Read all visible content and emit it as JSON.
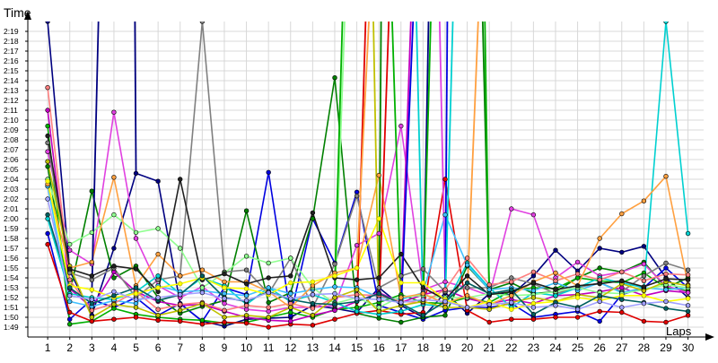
{
  "chart_data": {
    "type": "line",
    "ylabel": "Time",
    "xlabel": "Laps",
    "grid": true,
    "x": [
      1,
      2,
      3,
      4,
      5,
      6,
      7,
      8,
      9,
      10,
      11,
      12,
      13,
      14,
      15,
      16,
      17,
      18,
      19,
      20,
      21,
      22,
      23,
      24,
      25,
      26,
      27,
      28,
      29,
      30
    ],
    "ylim": [
      108,
      140
    ],
    "xlim": [
      0.1,
      30.2
    ],
    "y_tick_values": [
      109,
      110,
      111,
      112,
      113,
      114,
      115,
      116,
      117,
      118,
      119,
      120,
      121,
      122,
      123,
      124,
      125,
      126,
      127,
      128,
      129,
      130,
      131,
      132,
      133,
      134,
      135,
      136,
      137,
      138,
      139
    ],
    "y_tick_labels": [
      "1:49",
      "1:50",
      "1:51",
      "1:52",
      "1:53",
      "1:54",
      "1:55",
      "1:56",
      "1:57",
      "1:58",
      "1:59",
      "2:00",
      "2:01",
      "2:02",
      "2:03",
      "2:04",
      "2:05",
      "2:06",
      "2:07",
      "2:08",
      "2:09",
      "2:10",
      "2:11",
      "2:12",
      "2:13",
      "2:14",
      "2:15",
      "2:16",
      "2:17",
      "2:18",
      "2:19"
    ],
    "x_tick_labels": [
      "1",
      "2",
      "3",
      "4",
      "5",
      "6",
      "7",
      "8",
      "9",
      "10",
      "11",
      "12",
      "13",
      "14",
      "15",
      "16",
      "17",
      "18",
      "19",
      "20",
      "21",
      "22",
      "23",
      "24",
      "25",
      "26",
      "27",
      "28",
      "29",
      "30"
    ],
    "series": [
      {
        "color": "#000080",
        "values": [
          140.0,
          114.7,
          110.2,
          117.0,
          124.6,
          123.8,
          111.4,
          109.6,
          109.1,
          109.8,
          109.9,
          110.0,
          111.2,
          110.9,
          110.5,
          113.0,
          111.2,
          110.0,
          112.5,
          110.4,
          112.4,
          112.3,
          114.2,
          116.8,
          114.7,
          117.0,
          116.6,
          117.2,
          114.0,
          112.0
        ]
      },
      {
        "color": "#0000e0",
        "values": [
          118.5,
          109.8,
          111.8,
          111.0,
          112.0,
          110.2,
          111.4,
          109.6,
          113.0,
          112.3,
          124.7,
          110.2,
          120.0,
          115.5,
          122.7,
          111.2,
          110.5,
          109.8,
          110.7,
          111.0,
          111.0,
          111.4,
          110.0,
          110.3,
          110.6,
          109.6,
          112.3,
          113.0,
          115.0,
          113.0
        ]
      },
      {
        "color": "#008000",
        "values": [
          125.3,
          112.4,
          122.8,
          114.0,
          115.2,
          112.0,
          110.4,
          111.1,
          111.7,
          120.8,
          111.5,
          112.5,
          120.0,
          134.3,
          110.4,
          109.9,
          109.5,
          110.0,
          110.2,
          115.2,
          112.8,
          113.5,
          112.4,
          112.6,
          114.0,
          115.0,
          114.6,
          115.6,
          113.0,
          114.0
        ]
      },
      {
        "color": "#00b000",
        "values": [
          129.4,
          109.3,
          109.6,
          110.9,
          110.3,
          110.0,
          109.8,
          109.7,
          109.4,
          109.5,
          110.0,
          110.5,
          110.0,
          110.8,
          111.0,
          111.5,
          112.3,
          111.5,
          111.4,
          112.0,
          111.5,
          112.7,
          113.0,
          112.9,
          114.0,
          113.7,
          113.5,
          114.5,
          113.0,
          112.7
        ]
      },
      {
        "color": "#e00000",
        "values": [
          117.4,
          110.5,
          109.6,
          109.8,
          110.0,
          109.7,
          109.6,
          109.3,
          109.5,
          109.4,
          109.0,
          109.3,
          109.2,
          109.8,
          110.4,
          110.7,
          110.3,
          110.5,
          124.0,
          110.7,
          109.5,
          109.8,
          109.8,
          110.0,
          110.0,
          110.6,
          110.5,
          109.6,
          109.5,
          110.2
        ]
      },
      {
        "color": "#c000c0",
        "values": [
          131.0,
          112.9,
          111.0,
          114.6,
          112.6,
          111.6,
          111.2,
          111.3,
          110.6,
          110.0,
          109.7,
          109.6,
          110.2,
          110.7,
          111.6,
          112.5,
          111.5,
          112.3,
          112.8,
          111.9,
          111.4,
          111.8,
          111.4,
          112.2,
          112.3,
          112.6,
          113.0,
          112.2,
          112.7,
          112.5
        ]
      },
      {
        "color": "#e040e0",
        "values": [
          126.8,
          116.8,
          115.4,
          130.8,
          118.0,
          113.2,
          112.0,
          113.1,
          111.4,
          110.8,
          110.6,
          111.0,
          111.0,
          111.2,
          117.3,
          118.5,
          129.4,
          112.8,
          113.6,
          113.0,
          112.2,
          121.0,
          120.4,
          114.0,
          115.6,
          114.2,
          114.6,
          115.4,
          113.2,
          112.5
        ]
      },
      {
        "color": "#808080",
        "values": [
          127.7,
          114.5,
          113.8,
          115.0,
          112.0,
          113.8,
          114.2,
          140.0,
          114.6,
          114.8,
          112.4,
          116.0,
          111.0,
          115.4,
          122.3,
          113.0,
          114.2,
          114.9,
          112.6,
          113.0,
          113.0,
          114.0,
          113.4,
          112.4,
          113.0,
          113.5,
          112.6,
          114.2,
          115.5,
          114.8
        ]
      },
      {
        "color": "#00d0d0",
        "values": [
          120.0,
          112.4,
          112.0,
          111.8,
          112.6,
          114.2,
          112.4,
          114.0,
          113.2,
          111.3,
          113.0,
          111.6,
          112.3,
          111.5,
          110.6,
          110.3,
          110.6,
          111.3,
          111.1,
          115.5,
          113.0,
          111.0,
          112.5,
          112.2,
          113.0,
          114.0,
          113.5,
          113.0,
          140.0,
          118.5
        ]
      },
      {
        "color": "#40c0ff",
        "values": [
          123.3,
          111.6,
          111.1,
          111.7,
          111.4,
          113.2,
          112.6,
          112.7,
          112.4,
          112.2,
          113.0,
          112.4,
          112.8,
          113.1,
          113.0,
          112.0,
          111.8,
          112.5,
          120.4,
          115.3,
          112.8,
          113.0,
          112.7,
          113.5,
          112.7,
          113.5,
          112.5,
          113.0,
          112.8,
          113.0
        ]
      },
      {
        "color": "#90ff90",
        "values": [
          124.0,
          117.4,
          118.6,
          120.4,
          118.6,
          119.0,
          117.0,
          113.0,
          114.5,
          116.2,
          115.5,
          116.0,
          113.0,
          111.4,
          112.0,
          111.0,
          112.1,
          112.2,
          112.0,
          112.0,
          112.4,
          112.2,
          112.3,
          112.6,
          113.0,
          112.5,
          112.4,
          112.8,
          113.3,
          113.0
        ]
      },
      {
        "color": "#ff8080",
        "values": [
          133.3,
          113.8,
          110.7,
          111.4,
          112.6,
          110.8,
          111.3,
          111.5,
          110.7,
          111.2,
          111.0,
          111.4,
          110.9,
          112.0,
          112.3,
          112.2,
          111.6,
          111.5,
          112.8,
          116.0,
          113.3,
          113.6,
          114.6,
          113.7,
          114.4,
          113.8,
          114.6,
          113.7,
          114.4,
          114.3
        ]
      },
      {
        "color": "#ffa040",
        "values": [
          123.5,
          115.0,
          115.6,
          124.2,
          113.2,
          116.4,
          114.2,
          114.8,
          113.6,
          113.6,
          112.6,
          111.0,
          113.2,
          114.5,
          115.0,
          124.4,
          112.0,
          112.4,
          111.4,
          112.2,
          111.3,
          112.2,
          113.6,
          114.5,
          113.2,
          118.0,
          120.5,
          121.8,
          124.3,
          113.3
        ]
      },
      {
        "color": "#c0c000",
        "values": [
          125.8,
          115.2,
          110.0,
          111.3,
          111.0,
          110.2,
          110.7,
          111.4,
          110.0,
          110.2,
          110.0,
          111.0,
          110.2,
          112.0,
          112.8,
          110.6,
          111.2,
          111.6,
          111.0,
          111.0,
          110.8,
          111.5,
          112.0,
          111.6,
          112.3,
          112.0,
          113.4,
          112.7,
          113.6,
          113.2
        ]
      },
      {
        "color": "#202020",
        "values": [
          128.4,
          114.9,
          114.2,
          115.2,
          114.9,
          112.6,
          124.0,
          113.8,
          114.4,
          113.4,
          114.0,
          114.2,
          120.6,
          114.0,
          113.8,
          114.0,
          116.4,
          113.0,
          111.8,
          114.2,
          112.3,
          112.6,
          113.5,
          112.8,
          113.2,
          113.4,
          113.7,
          113.1,
          113.9,
          113.8
        ]
      },
      {
        "color": "#ffff00",
        "values": [
          123.8,
          113.2,
          112.8,
          112.0,
          112.4,
          113.0,
          113.4,
          114.0,
          113.0,
          112.9,
          112.3,
          113.5,
          113.6,
          114.2,
          115.0,
          120.0,
          113.5,
          113.5,
          111.8,
          111.0,
          111.6,
          110.8,
          111.4,
          111.6,
          112.0,
          111.7,
          112.2,
          112.2,
          111.6,
          111.9
        ]
      },
      {
        "color": "#006060",
        "values": [
          120.4,
          113.0,
          111.4,
          112.2,
          113.0,
          111.7,
          112.3,
          114.2,
          112.0,
          111.6,
          112.6,
          111.8,
          111.4,
          111.3,
          111.6,
          112.4,
          111.4,
          110.2,
          111.6,
          113.5,
          112.4,
          112.8,
          110.3,
          111.5,
          111.0,
          112.2,
          111.8,
          111.5,
          110.9,
          110.6
        ]
      },
      {
        "color": "#a0a0ff",
        "values": [
          122.0,
          112.2,
          111.8,
          112.6,
          111.8,
          112.0,
          112.3,
          112.5,
          111.9,
          111.7,
          112.5,
          111.9,
          112.3,
          112.4,
          111.9,
          111.8,
          111.5,
          111.8,
          111.6,
          111.0,
          111.3,
          111.5,
          111.0,
          111.2,
          110.8,
          111.6,
          111.0,
          111.4,
          111.6,
          111.2
        ]
      }
    ],
    "spike_lines": [
      {
        "color": "#000080",
        "from": [
          3,
          112.5
        ],
        "to": [
          3.3,
          140
        ]
      },
      {
        "color": "#000080",
        "from": [
          5,
          124.6
        ],
        "to": [
          4.95,
          140
        ]
      },
      {
        "color": "#90ff90",
        "from": [
          14,
          111.4
        ],
        "to": [
          14.45,
          140
        ]
      },
      {
        "color": "#00b000",
        "from": [
          14,
          113.0
        ],
        "to": [
          14.35,
          140
        ]
      },
      {
        "color": "#e00000",
        "from": [
          15,
          110.4
        ],
        "to": [
          15.4,
          140
        ]
      },
      {
        "color": "#ffa040",
        "from": [
          15,
          115.0
        ],
        "to": [
          15.55,
          140
        ]
      },
      {
        "color": "#c0c000",
        "from": [
          16,
          110.6
        ],
        "to": [
          15.75,
          140
        ]
      },
      {
        "color": "#008000",
        "from": [
          16,
          109.9
        ],
        "to": [
          16.1,
          140
        ]
      },
      {
        "color": "#e00000",
        "from": [
          16,
          110.7
        ],
        "to": [
          16.45,
          140
        ]
      },
      {
        "color": "#00b000",
        "from": [
          17,
          112.3
        ],
        "to": [
          16.6,
          140
        ]
      },
      {
        "color": "#c000c0",
        "from": [
          17,
          111.5
        ],
        "to": [
          17.45,
          140
        ]
      },
      {
        "color": "#0000e0",
        "from": [
          17,
          110.5
        ],
        "to": [
          17.55,
          140
        ]
      },
      {
        "color": "#00d0d0",
        "from": [
          18,
          111.3
        ],
        "to": [
          17.7,
          140
        ]
      },
      {
        "color": "#000080",
        "from": [
          18,
          110.0
        ],
        "to": [
          18.25,
          140
        ]
      },
      {
        "color": "#00b000",
        "from": [
          18,
          111.5
        ],
        "to": [
          18.35,
          140
        ]
      },
      {
        "color": "#e040e0",
        "from": [
          19,
          113.6
        ],
        "to": [
          18.75,
          140
        ]
      },
      {
        "color": "#0000e0",
        "from": [
          19,
          110.7
        ],
        "to": [
          19.1,
          140
        ]
      },
      {
        "color": "#00d0d0",
        "from": [
          19,
          111.1
        ],
        "to": [
          19.35,
          140
        ]
      },
      {
        "color": "#ffa040",
        "from": [
          20,
          112.2
        ],
        "to": [
          20.5,
          140
        ]
      },
      {
        "color": "#008000",
        "from": [
          21,
          112.8
        ],
        "to": [
          20.7,
          140
        ]
      },
      {
        "color": "#00b000",
        "from": [
          21,
          111.5
        ],
        "to": [
          20.8,
          140
        ]
      }
    ]
  }
}
